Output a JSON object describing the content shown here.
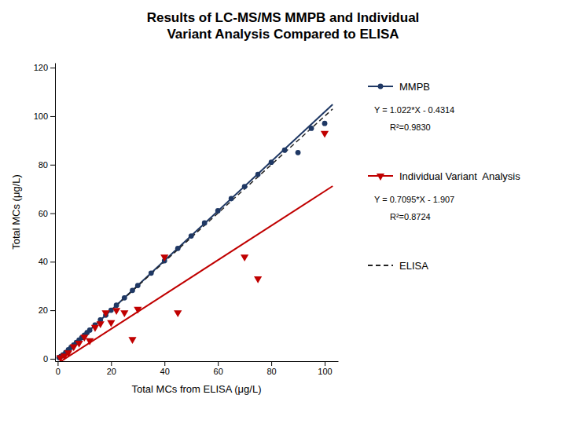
{
  "chart_data": {
    "type": "scatter",
    "title": "Results of LC-MS/MS MMPB and Individual\nVariant Analysis Compared to ELISA",
    "x_label": "Total MCs from ELISA (μg/L)",
    "y_label": "Total MCs (μg/L)",
    "xlim": [
      -1,
      105
    ],
    "ylim": [
      -1,
      122
    ],
    "xticks": [
      0,
      20,
      40,
      60,
      80,
      100
    ],
    "yticks": [
      0,
      20,
      40,
      60,
      80,
      100,
      120
    ],
    "grid": false,
    "series": [
      {
        "name": "MMPB",
        "type": "scatter",
        "color": "#1F3864",
        "marker": "circle",
        "line_style": "solid",
        "x": [
          0.5,
          1.2,
          2.0,
          3.0,
          4.0,
          5.0,
          6.0,
          7.0,
          8.0,
          9.0,
          10.0,
          11.0,
          12.0,
          14.0,
          16.0,
          18.0,
          20.0,
          22.0,
          25.0,
          28.0,
          30.0,
          35.0,
          40.0,
          45.0,
          50.0,
          55.0,
          60.0,
          65.0,
          70.0,
          75.0,
          80.0,
          85.0,
          90.0,
          95.0,
          100.0
        ],
        "values": [
          0.5,
          1.0,
          1.6,
          2.6,
          3.7,
          4.7,
          5.7,
          6.7,
          7.7,
          8.7,
          9.7,
          10.8,
          11.8,
          13.9,
          16.0,
          18.0,
          20.0,
          22.1,
          25.1,
          28.2,
          30.2,
          35.3,
          40.4,
          45.5,
          50.6,
          56.0,
          61.0,
          66.0,
          71.0,
          76.0,
          81.0,
          86.0,
          85.0,
          95.0,
          97.0
        ],
        "fit_x": [
          0,
          103
        ],
        "fit_values": [
          -0.4314,
          104.8346
        ],
        "equation": "Y = 1.022*X - 0.4314",
        "r2": "R²=0.9830"
      },
      {
        "name": "Individual Variant  Analysis",
        "type": "scatter",
        "color": "#C00000",
        "marker": "triangle-down",
        "line_style": "solid",
        "x": [
          1.0,
          2.5,
          4.0,
          6.0,
          8.0,
          10.0,
          12.0,
          14.0,
          16.0,
          18.0,
          20.0,
          22.0,
          25.0,
          28.0,
          30.0,
          40.0,
          45.0,
          70.0,
          75.0,
          100.0
        ],
        "values": [
          0.5,
          1.2,
          2.5,
          5.0,
          6.5,
          9.0,
          7.5,
          13.0,
          14.5,
          19.0,
          15.0,
          20.0,
          19.0,
          8.0,
          20.5,
          42.0,
          19.0,
          42.0,
          33.0,
          93.0
        ],
        "fit_x": [
          0,
          103
        ],
        "fit_values": [
          -1.907,
          71.1715
        ],
        "equation": "Y = 0.7095*X - 1.907",
        "r2": "R²=0.8724"
      },
      {
        "name": "ELISA",
        "type": "line",
        "color": "#222222",
        "line_style": "dashed",
        "x": [
          0,
          103
        ],
        "values": [
          0,
          103
        ]
      }
    ]
  }
}
